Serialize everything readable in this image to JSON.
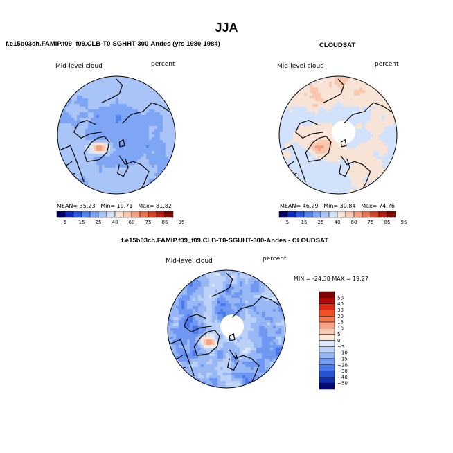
{
  "figure": {
    "title": "JJA"
  },
  "panels": {
    "model": {
      "header": "f.e15b03ch.FAMIP.f09_f09.CLB-T0-SGHHT-300-Andes (yrs 1980-1984)",
      "left_label": "Mid-level cloud",
      "right_label": "percent",
      "stats": {
        "mean_label": "MEAN=",
        "mean": "35.23",
        "min_label": "Min=",
        "min": "19.71",
        "max_label": "Max=",
        "max": "81.82"
      }
    },
    "obs": {
      "header": "CLOUDSAT",
      "left_label": "Mid-level cloud",
      "right_label": "percent",
      "stats": {
        "mean_label": "MEAN=",
        "mean": "46.29",
        "min_label": "Min=",
        "min": "30.84",
        "max_label": "Max=",
        "max": "74.76"
      }
    },
    "diff": {
      "header": "f.e15b03ch.FAMIP.f09_f09.CLB-T0-SGHHT-300-Andes - CLOUDSAT",
      "left_label": "Mid-level cloud",
      "right_label": "percent",
      "stats_text": "MIN = -24.38 MAX =  19.27"
    }
  },
  "chart_data": [
    {
      "type": "heatmap",
      "name": "model",
      "projection": "north-polar-stereographic",
      "title": "f.e15b03ch.FAMIP.f09_f09.CLB-T0-SGHHT-300-Andes (yrs 1980-1984)",
      "variable": "Mid-level cloud",
      "units": "percent",
      "mean": 35.23,
      "min": 19.71,
      "max": 81.82,
      "colorbar_levels": [
        "5",
        "15",
        "25",
        "40",
        "60",
        "75",
        "85",
        "95"
      ]
    },
    {
      "type": "heatmap",
      "name": "obs",
      "projection": "north-polar-stereographic",
      "title": "CLOUDSAT",
      "variable": "Mid-level cloud",
      "units": "percent",
      "mean": 46.29,
      "min": 30.84,
      "max": 74.76,
      "colorbar_levels": [
        "5",
        "15",
        "25",
        "40",
        "60",
        "75",
        "85",
        "95"
      ]
    },
    {
      "type": "heatmap",
      "name": "difference",
      "projection": "north-polar-stereographic",
      "title": "f.e15b03ch.FAMIP.f09_f09.CLB-T0-SGHHT-300-Andes - CLOUDSAT",
      "variable": "Mid-level cloud",
      "units": "percent",
      "min": -24.38,
      "max": 19.27,
      "colorbar_levels": [
        "50",
        "40",
        "30",
        "20",
        "15",
        "10",
        "5",
        "0",
        "−5",
        "−10",
        "−15",
        "−20",
        "−30",
        "−40",
        "−50"
      ]
    }
  ],
  "colors": {
    "seq": [
      "#08006a",
      "#1028c0",
      "#2b5ae6",
      "#5585f0",
      "#7fa6f5",
      "#a9c5f8",
      "#d3e2fb",
      "#f7e4d6",
      "#f9c7ad",
      "#f5a07e",
      "#ec7551",
      "#d6472a",
      "#b51c12",
      "#800b04"
    ],
    "div": [
      "#800000",
      "#b40a0a",
      "#e02a10",
      "#f45024",
      "#f47a55",
      "#f7a282",
      "#f9c8b0",
      "#fbe6d8",
      "#dde8fb",
      "#bcd1f8",
      "#98b7f5",
      "#7097f2",
      "#4878ea",
      "#2453d6",
      "#0d2fb0",
      "#050a6e"
    ]
  }
}
